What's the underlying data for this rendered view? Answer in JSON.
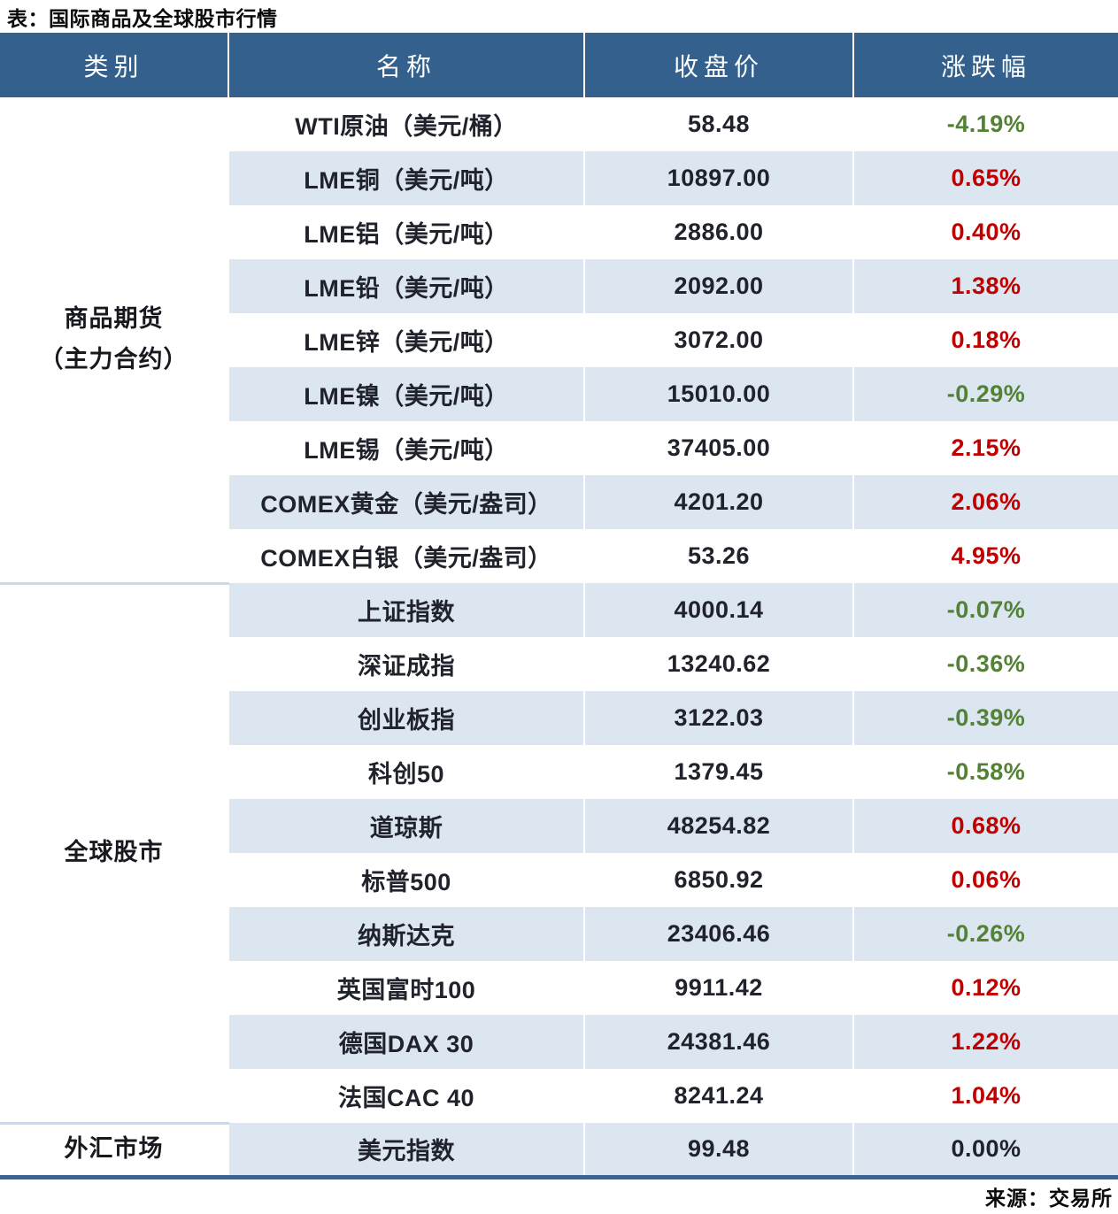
{
  "title": "表：国际商品及全球股市行情",
  "source_note": "来源：交易所",
  "colors": {
    "header_bg": "#33608c",
    "stripe_bg": "#dce6f1",
    "positive_red": "#c00000",
    "negative_green": "#538135",
    "neutral_text": "#20232b",
    "table_bottom_rule": "#3d6390",
    "group_divider": "#ccd8e4"
  },
  "chart_data": {
    "type": "table",
    "title": "表：国际商品及全球股市行情",
    "source": "来源：交易所",
    "columns": [
      "类别",
      "名称",
      "收盘价",
      "涨跌幅"
    ],
    "groups": [
      {
        "category": "商品期货\n（主力合约）",
        "rows": [
          {
            "name": "WTI原油（美元/桶）",
            "close": "58.48",
            "change": "-4.19%"
          },
          {
            "name": "LME铜（美元/吨）",
            "close": "10897.00",
            "change": "0.65%"
          },
          {
            "name": "LME铝（美元/吨）",
            "close": "2886.00",
            "change": "0.40%"
          },
          {
            "name": "LME铅（美元/吨）",
            "close": "2092.00",
            "change": "1.38%"
          },
          {
            "name": "LME锌（美元/吨）",
            "close": "3072.00",
            "change": "0.18%"
          },
          {
            "name": "LME镍（美元/吨）",
            "close": "15010.00",
            "change": "-0.29%"
          },
          {
            "name": "LME锡（美元/吨）",
            "close": "37405.00",
            "change": "2.15%"
          },
          {
            "name": "COMEX黄金（美元/盎司）",
            "close": "4201.20",
            "change": "2.06%"
          },
          {
            "name": "COMEX白银（美元/盎司）",
            "close": "53.26",
            "change": "4.95%"
          }
        ]
      },
      {
        "category": "全球股市",
        "rows": [
          {
            "name": "上证指数",
            "close": "4000.14",
            "change": "-0.07%"
          },
          {
            "name": "深证成指",
            "close": "13240.62",
            "change": "-0.36%"
          },
          {
            "name": "创业板指",
            "close": "3122.03",
            "change": "-0.39%"
          },
          {
            "name": "科创50",
            "close": "1379.45",
            "change": "-0.58%"
          },
          {
            "name": "道琼斯",
            "close": "48254.82",
            "change": "0.68%"
          },
          {
            "name": "标普500",
            "close": "6850.92",
            "change": "0.06%"
          },
          {
            "name": "纳斯达克",
            "close": "23406.46",
            "change": "-0.26%"
          },
          {
            "name": "英国富时100",
            "close": "9911.42",
            "change": "0.12%"
          },
          {
            "name": "德国DAX 30",
            "close": "24381.46",
            "change": "1.22%"
          },
          {
            "name": "法国CAC 40",
            "close": "8241.24",
            "change": "1.04%"
          }
        ]
      },
      {
        "category": "外汇市场",
        "rows": [
          {
            "name": "美元指数",
            "close": "99.48",
            "change": "0.00%"
          }
        ]
      }
    ]
  }
}
